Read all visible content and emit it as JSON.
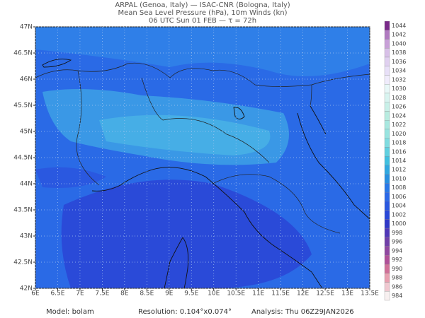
{
  "header": {
    "lines": [
      "ARPAL (Genoa, Italy)  —  ISAC-CNR (Bologna, Italy)",
      "Mean Sea Level Pressure (hPa), 10m Winds (kn)",
      "06 UTC Sun 01 FEB  —  τ = 72h"
    ]
  },
  "map": {
    "lonlim": [
      6,
      13.5
    ],
    "latlim": [
      42,
      47
    ],
    "lon_ticks": [
      {
        "value": 6,
        "label": "6E"
      },
      {
        "value": 6.5,
        "label": "6.5E"
      },
      {
        "value": 7,
        "label": "7E"
      },
      {
        "value": 7.5,
        "label": "7.5E"
      },
      {
        "value": 8,
        "label": "8E"
      },
      {
        "value": 8.5,
        "label": "8.5E"
      },
      {
        "value": 9,
        "label": "9E"
      },
      {
        "value": 9.5,
        "label": "9.5E"
      },
      {
        "value": 10,
        "label": "10E"
      },
      {
        "value": 10.5,
        "label": "10.5E"
      },
      {
        "value": 11,
        "label": "11E"
      },
      {
        "value": 11.5,
        "label": "11.5E"
      },
      {
        "value": 12,
        "label": "12E"
      },
      {
        "value": 12.5,
        "label": "12.5E"
      },
      {
        "value": 13,
        "label": "13E"
      },
      {
        "value": 13.5,
        "label": "13.5E"
      }
    ],
    "lat_ticks": [
      {
        "value": 47,
        "label": "47N"
      },
      {
        "value": 46.5,
        "label": "46.5N"
      },
      {
        "value": 46,
        "label": "46N"
      },
      {
        "value": 45.5,
        "label": "45.5N"
      },
      {
        "value": 45,
        "label": "45N"
      },
      {
        "value": 44.5,
        "label": "44.5N"
      },
      {
        "value": 44,
        "label": "44N"
      },
      {
        "value": 43.5,
        "label": "43.5N"
      },
      {
        "value": 43,
        "label": "43N"
      },
      {
        "value": 42.5,
        "label": "42.5N"
      },
      {
        "value": 42,
        "label": "42N"
      }
    ]
  },
  "colorbar": {
    "levels": [
      1044,
      1042,
      1040,
      1038,
      1036,
      1034,
      1032,
      1030,
      1028,
      1026,
      1024,
      1022,
      1020,
      1018,
      1016,
      1014,
      1012,
      1010,
      1008,
      1006,
      1004,
      1002,
      1000,
      998,
      996,
      994,
      992,
      990,
      988,
      986,
      984
    ],
    "colors": [
      "#7a2a8a",
      "#b07ac0",
      "#c8a0d8",
      "#d8c0e8",
      "#e0d0f0",
      "#e8e0f8",
      "#f0ecfc",
      "#e8f8f8",
      "#d8f4f0",
      "#c8f0e8",
      "#b8ece0",
      "#a8e8e0",
      "#98e4e0",
      "#80dce0",
      "#60d0e0",
      "#40c0e0",
      "#30a8e0",
      "#2890e0",
      "#2878e8",
      "#2a68e8",
      "#2a58e0",
      "#2a48d8",
      "#3038c8",
      "#5038b8",
      "#7040a8",
      "#9048a0",
      "#b05098",
      "#d07098",
      "#e8a0b0",
      "#f0c8d0",
      "#f8f0f0"
    ]
  },
  "footer": {
    "model": "Model: bolam",
    "resolution": "Resolution: 0.104°x0.074°",
    "analysis": "Analysis: Thu 06Z29JAN2026"
  }
}
